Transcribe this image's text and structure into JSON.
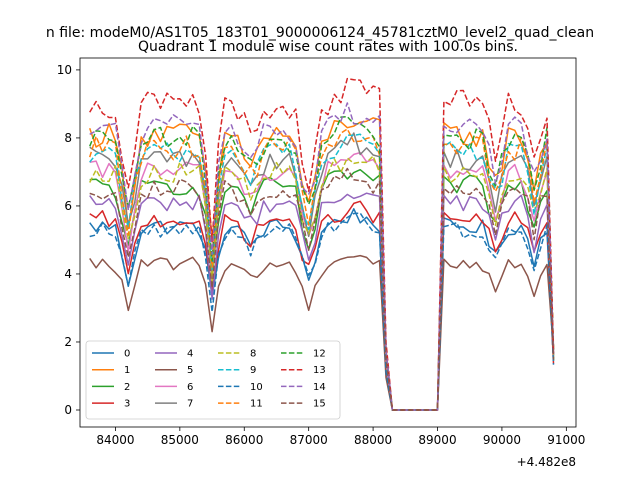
{
  "figure": {
    "suptitle": "n file: modeM0/AS1T05_183T01_9000006124_45781cztM0_level2_quad_clean",
    "offset_label": "+4.482e8"
  },
  "chart_data": {
    "type": "line",
    "title": "Quadrant 1 module wise count rates with 100.0s bins.",
    "xlabel": "",
    "ylabel": "",
    "x_offset": 448200000,
    "xlim": [
      83450,
      91150
    ],
    "ylim": [
      -0.5,
      10.35
    ],
    "xticks": [
      84000,
      85000,
      86000,
      87000,
      88000,
      89000,
      90000,
      91000
    ],
    "xtick_labels": [
      "84000",
      "85000",
      "86000",
      "87000",
      "88000",
      "89000",
      "90000",
      "91000"
    ],
    "yticks": [
      0,
      2,
      4,
      6,
      8,
      10
    ],
    "ytick_labels": [
      "0",
      "2",
      "4",
      "6",
      "8",
      "10"
    ],
    "grid": false,
    "legend": {
      "placement": "lower-left",
      "columns": 4
    },
    "x_start": 83600,
    "x_step": 100,
    "gap_range": [
      88300,
      89000
    ],
    "series": [
      {
        "name": "0",
        "color": "#1f77b4",
        "dash": "solid",
        "base": 5.4
      },
      {
        "name": "1",
        "color": "#ff7f0e",
        "dash": "solid",
        "base": 8.1
      },
      {
        "name": "2",
        "color": "#2ca02c",
        "dash": "solid",
        "base": 6.6
      },
      {
        "name": "3",
        "color": "#d62728",
        "dash": "solid",
        "base": 5.6
      },
      {
        "name": "4",
        "color": "#9467bd",
        "dash": "solid",
        "base": 6.1
      },
      {
        "name": "5",
        "color": "#8c564b",
        "dash": "solid",
        "base": 4.3
      },
      {
        "name": "6",
        "color": "#e377c2",
        "dash": "solid",
        "base": 7.0
      },
      {
        "name": "7",
        "color": "#7f7f7f",
        "dash": "solid",
        "base": 7.4
      },
      {
        "name": "8",
        "color": "#bcbd22",
        "dash": "dashed",
        "base": 7.0
      },
      {
        "name": "9",
        "color": "#17becf",
        "dash": "dashed",
        "base": 7.6
      },
      {
        "name": "10",
        "color": "#1f77b4",
        "dash": "dashed",
        "base": 5.3
      },
      {
        "name": "11",
        "color": "#ff7f0e",
        "dash": "dashed",
        "base": 7.7
      },
      {
        "name": "12",
        "color": "#2ca02c",
        "dash": "dashed",
        "base": 8.0
      },
      {
        "name": "13",
        "color": "#d62728",
        "dash": "dashed",
        "base": 9.0
      },
      {
        "name": "14",
        "color": "#9467bd",
        "dash": "dashed",
        "base": 8.3
      },
      {
        "name": "15",
        "color": "#8c564b",
        "dash": "dashed",
        "base": 6.5
      }
    ]
  }
}
